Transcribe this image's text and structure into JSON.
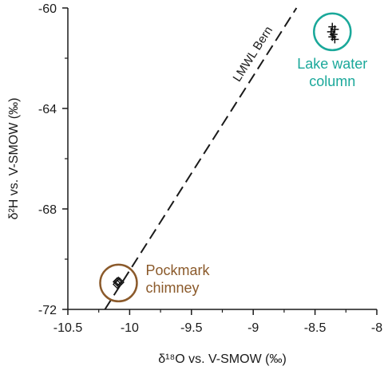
{
  "chart_data": {
    "type": "scatter",
    "title": "",
    "xlabel": "δ¹⁸O vs. V-SMOW (‰)",
    "ylabel": "δ²H vs. V-SMOW (‰)",
    "xlim": [
      -10.5,
      -8
    ],
    "ylim": [
      -72,
      -60
    ],
    "x_ticks": [
      "-10.5",
      "-10",
      "-9.5",
      "-9",
      "-8.5",
      "-8"
    ],
    "x_tick_values": [
      -10.5,
      -10,
      -9.5,
      -9,
      -8.5,
      -8
    ],
    "y_ticks": [
      "-72",
      "-68",
      "-64",
      "-60"
    ],
    "y_tick_values": [
      -72,
      -68,
      -64,
      -60
    ],
    "grid": false,
    "reference_line": {
      "name": "LMWL Bern",
      "x": [
        -10.2,
        -8.65
      ],
      "y": [
        -72,
        -60
      ],
      "style": "dashed"
    },
    "groups": [
      {
        "label": "Pockmark\nchimney",
        "label_lines": [
          "Pockmark",
          "chimney"
        ],
        "color": "#8B5A2B",
        "marker": "diamond",
        "circle_center": [
          -10.09,
          -70.95
        ],
        "points": [
          {
            "x": -10.1,
            "y": -70.9
          },
          {
            "x": -10.09,
            "y": -70.95
          },
          {
            "x": -10.08,
            "y": -70.92
          },
          {
            "x": -10.1,
            "y": -71.0
          },
          {
            "x": -10.09,
            "y": -70.88
          }
        ]
      },
      {
        "label": "Lake water\ncolumn",
        "label_lines": [
          "Lake water",
          "column"
        ],
        "color": "#1AA89A",
        "marker": "plus",
        "circle_center": [
          -8.36,
          -60.95
        ],
        "points": [
          {
            "x": -8.36,
            "y": -60.75
          },
          {
            "x": -8.34,
            "y": -60.85
          },
          {
            "x": -8.37,
            "y": -60.95
          },
          {
            "x": -8.35,
            "y": -61.05
          },
          {
            "x": -8.36,
            "y": -61.15
          },
          {
            "x": -8.34,
            "y": -61.25
          }
        ]
      }
    ]
  }
}
